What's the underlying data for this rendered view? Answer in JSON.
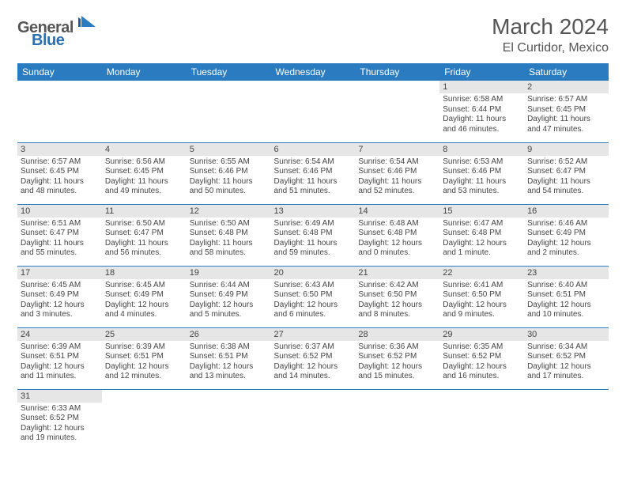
{
  "logo": {
    "firstWord": "General",
    "secondWord": "Blue"
  },
  "title": "March 2024",
  "location": "El Curtidor, Mexico",
  "colors": {
    "headerBlue": "#2a7bbf",
    "logoBlue": "#2a6fb0",
    "grayText": "#555555",
    "cellBarGray": "#e6e6e6",
    "white": "#ffffff"
  },
  "dayHeaders": [
    "Sunday",
    "Monday",
    "Tuesday",
    "Wednesday",
    "Thursday",
    "Friday",
    "Saturday"
  ],
  "font": {
    "family": "Arial",
    "title_fontsize": 28,
    "location_fontsize": 16,
    "header_fontsize": 12,
    "daynum_fontsize": 11,
    "details_fontsize": 10
  },
  "weeks": [
    [
      null,
      null,
      null,
      null,
      null,
      {
        "n": "1",
        "sr": "6:58 AM",
        "ss": "6:44 PM",
        "dl": "11 hours and 46 minutes."
      },
      {
        "n": "2",
        "sr": "6:57 AM",
        "ss": "6:45 PM",
        "dl": "11 hours and 47 minutes."
      }
    ],
    [
      {
        "n": "3",
        "sr": "6:57 AM",
        "ss": "6:45 PM",
        "dl": "11 hours and 48 minutes."
      },
      {
        "n": "4",
        "sr": "6:56 AM",
        "ss": "6:45 PM",
        "dl": "11 hours and 49 minutes."
      },
      {
        "n": "5",
        "sr": "6:55 AM",
        "ss": "6:46 PM",
        "dl": "11 hours and 50 minutes."
      },
      {
        "n": "6",
        "sr": "6:54 AM",
        "ss": "6:46 PM",
        "dl": "11 hours and 51 minutes."
      },
      {
        "n": "7",
        "sr": "6:54 AM",
        "ss": "6:46 PM",
        "dl": "11 hours and 52 minutes."
      },
      {
        "n": "8",
        "sr": "6:53 AM",
        "ss": "6:46 PM",
        "dl": "11 hours and 53 minutes."
      },
      {
        "n": "9",
        "sr": "6:52 AM",
        "ss": "6:47 PM",
        "dl": "11 hours and 54 minutes."
      }
    ],
    [
      {
        "n": "10",
        "sr": "6:51 AM",
        "ss": "6:47 PM",
        "dl": "11 hours and 55 minutes."
      },
      {
        "n": "11",
        "sr": "6:50 AM",
        "ss": "6:47 PM",
        "dl": "11 hours and 56 minutes."
      },
      {
        "n": "12",
        "sr": "6:50 AM",
        "ss": "6:48 PM",
        "dl": "11 hours and 58 minutes."
      },
      {
        "n": "13",
        "sr": "6:49 AM",
        "ss": "6:48 PM",
        "dl": "11 hours and 59 minutes."
      },
      {
        "n": "14",
        "sr": "6:48 AM",
        "ss": "6:48 PM",
        "dl": "12 hours and 0 minutes."
      },
      {
        "n": "15",
        "sr": "6:47 AM",
        "ss": "6:48 PM",
        "dl": "12 hours and 1 minute."
      },
      {
        "n": "16",
        "sr": "6:46 AM",
        "ss": "6:49 PM",
        "dl": "12 hours and 2 minutes."
      }
    ],
    [
      {
        "n": "17",
        "sr": "6:45 AM",
        "ss": "6:49 PM",
        "dl": "12 hours and 3 minutes."
      },
      {
        "n": "18",
        "sr": "6:45 AM",
        "ss": "6:49 PM",
        "dl": "12 hours and 4 minutes."
      },
      {
        "n": "19",
        "sr": "6:44 AM",
        "ss": "6:49 PM",
        "dl": "12 hours and 5 minutes."
      },
      {
        "n": "20",
        "sr": "6:43 AM",
        "ss": "6:50 PM",
        "dl": "12 hours and 6 minutes."
      },
      {
        "n": "21",
        "sr": "6:42 AM",
        "ss": "6:50 PM",
        "dl": "12 hours and 8 minutes."
      },
      {
        "n": "22",
        "sr": "6:41 AM",
        "ss": "6:50 PM",
        "dl": "12 hours and 9 minutes."
      },
      {
        "n": "23",
        "sr": "6:40 AM",
        "ss": "6:51 PM",
        "dl": "12 hours and 10 minutes."
      }
    ],
    [
      {
        "n": "24",
        "sr": "6:39 AM",
        "ss": "6:51 PM",
        "dl": "12 hours and 11 minutes."
      },
      {
        "n": "25",
        "sr": "6:39 AM",
        "ss": "6:51 PM",
        "dl": "12 hours and 12 minutes."
      },
      {
        "n": "26",
        "sr": "6:38 AM",
        "ss": "6:51 PM",
        "dl": "12 hours and 13 minutes."
      },
      {
        "n": "27",
        "sr": "6:37 AM",
        "ss": "6:52 PM",
        "dl": "12 hours and 14 minutes."
      },
      {
        "n": "28",
        "sr": "6:36 AM",
        "ss": "6:52 PM",
        "dl": "12 hours and 15 minutes."
      },
      {
        "n": "29",
        "sr": "6:35 AM",
        "ss": "6:52 PM",
        "dl": "12 hours and 16 minutes."
      },
      {
        "n": "30",
        "sr": "6:34 AM",
        "ss": "6:52 PM",
        "dl": "12 hours and 17 minutes."
      }
    ],
    [
      {
        "n": "31",
        "sr": "6:33 AM",
        "ss": "6:52 PM",
        "dl": "12 hours and 19 minutes."
      },
      null,
      null,
      null,
      null,
      null,
      null
    ]
  ]
}
